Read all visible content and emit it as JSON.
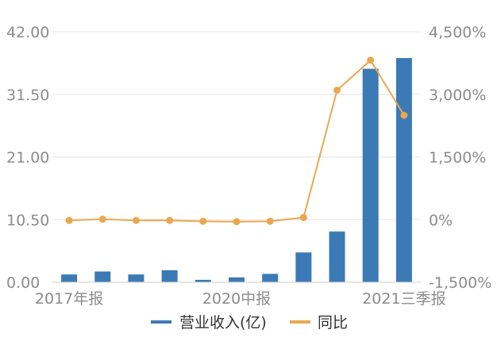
{
  "chart_data": {
    "type": "bar+line",
    "x_tick_labels": [
      "2017年报",
      "2020中报",
      "2021三季报"
    ],
    "series": [
      {
        "name": "营业收入(亿)",
        "type": "bar",
        "axis": "left",
        "values": [
          1.3,
          1.8,
          1.3,
          2.0,
          0.4,
          0.8,
          1.4,
          5.0,
          8.5,
          35.8,
          37.6
        ]
      },
      {
        "name": "同比",
        "type": "line",
        "axis": "right",
        "values": [
          -20,
          10,
          -20,
          -20,
          -40,
          -50,
          -40,
          50,
          3100,
          3820,
          2500
        ]
      }
    ],
    "left_axis": {
      "ticks": [
        "42.00",
        "31.50",
        "21.00",
        "10.50",
        "0.00"
      ],
      "ylim": [
        0,
        42
      ]
    },
    "right_axis": {
      "ticks": [
        "4,500%",
        "3,000%",
        "1,500%",
        "0%",
        "-1,500%"
      ],
      "ylim": [
        -1500,
        4500
      ]
    },
    "legend_position": "bottom",
    "grid": "horizontal",
    "colors": {
      "bar": "#3c7ab6",
      "line": "#e9a84f",
      "grid": "#e5e5e5",
      "text": "#8c8c8c"
    }
  }
}
